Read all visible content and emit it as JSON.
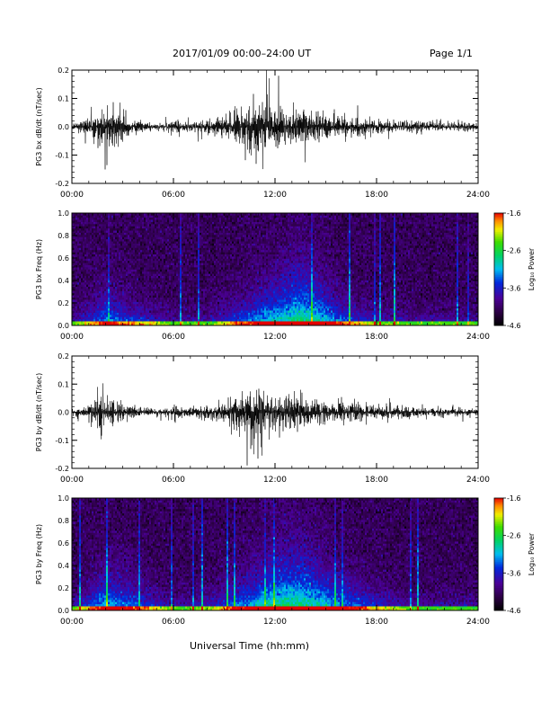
{
  "header": {
    "title": "2017/01/09  00:00–24:00 UT",
    "page": "Page 1/1"
  },
  "footer": {
    "xlabel": "Universal Time (hh:mm)"
  },
  "colorbar": {
    "label": "Log₁₀ Power",
    "ticks": [
      -1.6,
      -2.6,
      -3.6,
      -4.6
    ],
    "range": [
      -4.6,
      -1.6
    ]
  },
  "chart_data": [
    {
      "type": "line",
      "panel": "bx-timeseries",
      "ylabel": "PG3 bx dB/dt (nT/sec)",
      "xlim": [
        "00:00",
        "24:00"
      ],
      "ylim": [
        -0.2,
        0.2
      ],
      "xticks": [
        "00:00",
        "06:00",
        "12:00",
        "18:00",
        "24:00"
      ],
      "yticks": [
        "-0.2",
        "-0.1",
        "0.0",
        "0.1",
        "0.2"
      ],
      "envelope": {
        "hours": [
          0,
          1,
          1.5,
          2,
          2.5,
          3,
          4,
          5,
          5.8,
          6,
          6.5,
          7,
          8,
          9,
          9.5,
          10,
          10.5,
          11,
          11.5,
          12,
          12.5,
          13,
          13.5,
          14,
          15,
          16,
          17,
          18,
          19,
          20,
          21,
          22,
          23,
          24
        ],
        "max": [
          0.02,
          0.05,
          0.09,
          0.12,
          0.1,
          0.06,
          0.04,
          0.02,
          0.03,
          0.08,
          0.03,
          0.03,
          0.04,
          0.06,
          0.1,
          0.12,
          0.2,
          0.16,
          0.19,
          0.14,
          0.09,
          0.11,
          0.12,
          0.1,
          0.09,
          0.08,
          0.06,
          0.05,
          0.04,
          0.04,
          0.03,
          0.03,
          0.03,
          0.02
        ],
        "min": [
          -0.02,
          -0.06,
          -0.12,
          -0.18,
          -0.15,
          -0.09,
          -0.04,
          -0.02,
          -0.03,
          -0.06,
          -0.03,
          -0.03,
          -0.05,
          -0.08,
          -0.12,
          -0.14,
          -0.2,
          -0.16,
          -0.18,
          -0.13,
          -0.09,
          -0.1,
          -0.11,
          -0.09,
          -0.08,
          -0.07,
          -0.06,
          -0.05,
          -0.04,
          -0.04,
          -0.03,
          -0.03,
          -0.03,
          -0.02
        ]
      }
    },
    {
      "type": "heatmap",
      "panel": "bx-spectrogram",
      "ylabel": "PG3 bx Freq (Hz)",
      "xlim": [
        "00:00",
        "24:00"
      ],
      "ylim": [
        0.0,
        1.0
      ],
      "xticks": [
        "00:00",
        "06:00",
        "12:00",
        "18:00",
        "24:00"
      ],
      "yticks": [
        "0.0",
        "0.2",
        "0.4",
        "0.6",
        "0.8",
        "1.0"
      ],
      "zlabel": "Log₁₀ Power",
      "zlim": [
        -4.6,
        -1.6
      ],
      "activity_profile": {
        "hours": [
          0,
          2,
          4,
          6,
          8,
          10,
          11.5,
          12.5,
          13.5,
          14.5,
          16,
          18,
          20,
          22,
          24
        ],
        "power_offset": [
          0.3,
          0.7,
          0.5,
          0.3,
          0.3,
          0.6,
          0.8,
          0.9,
          1.0,
          0.9,
          0.6,
          0.4,
          0.3,
          0.3,
          0.3
        ]
      }
    },
    {
      "type": "line",
      "panel": "by-timeseries",
      "ylabel": "PG3 by dB/dt (nT/sec)",
      "xlim": [
        "00:00",
        "24:00"
      ],
      "ylim": [
        -0.2,
        0.2
      ],
      "xticks": [
        "00:00",
        "06:00",
        "12:00",
        "18:00",
        "24:00"
      ],
      "yticks": [
        "-0.2",
        "-0.1",
        "0.0",
        "0.1",
        "0.2"
      ],
      "envelope": {
        "hours": [
          0,
          1,
          1.5,
          2,
          2.5,
          3,
          4,
          5,
          5.8,
          6,
          6.5,
          7,
          8,
          9,
          9.5,
          10,
          10.5,
          11,
          11.5,
          12,
          12.5,
          13,
          13.5,
          14,
          15,
          16,
          17,
          18,
          19,
          20,
          21,
          22,
          23,
          24
        ],
        "max": [
          0.02,
          0.05,
          0.1,
          0.12,
          0.1,
          0.05,
          0.04,
          0.02,
          0.03,
          0.06,
          0.03,
          0.03,
          0.04,
          0.06,
          0.1,
          0.13,
          0.17,
          0.19,
          0.16,
          0.12,
          0.09,
          0.1,
          0.11,
          0.09,
          0.08,
          0.07,
          0.05,
          0.04,
          0.04,
          0.04,
          0.03,
          0.03,
          0.03,
          0.02
        ],
        "min": [
          -0.02,
          -0.06,
          -0.09,
          -0.11,
          -0.08,
          -0.05,
          -0.04,
          -0.02,
          -0.03,
          -0.06,
          -0.03,
          -0.03,
          -0.05,
          -0.08,
          -0.12,
          -0.16,
          -0.2,
          -0.19,
          -0.15,
          -0.12,
          -0.1,
          -0.12,
          -0.11,
          -0.09,
          -0.08,
          -0.07,
          -0.06,
          -0.05,
          -0.04,
          -0.04,
          -0.03,
          -0.03,
          -0.03,
          -0.02
        ]
      }
    },
    {
      "type": "heatmap",
      "panel": "by-spectrogram",
      "ylabel": "PG3 by Freq (Hz)",
      "xlim": [
        "00:00",
        "24:00"
      ],
      "ylim": [
        0.0,
        1.0
      ],
      "xticks": [
        "00:00",
        "06:00",
        "12:00",
        "18:00",
        "24:00"
      ],
      "yticks": [
        "0.0",
        "0.2",
        "0.4",
        "0.6",
        "0.8",
        "1.0"
      ],
      "zlabel": "Log₁₀ Power",
      "zlim": [
        -4.6,
        -1.6
      ],
      "activity_profile": {
        "hours": [
          0,
          2,
          4,
          6,
          8,
          10,
          11.5,
          12.5,
          13.5,
          14.5,
          16,
          18,
          20,
          22,
          24
        ],
        "power_offset": [
          0.3,
          0.8,
          0.6,
          0.3,
          0.4,
          0.7,
          0.9,
          1.0,
          1.0,
          0.9,
          0.7,
          0.5,
          0.3,
          0.3,
          0.3
        ]
      }
    }
  ]
}
